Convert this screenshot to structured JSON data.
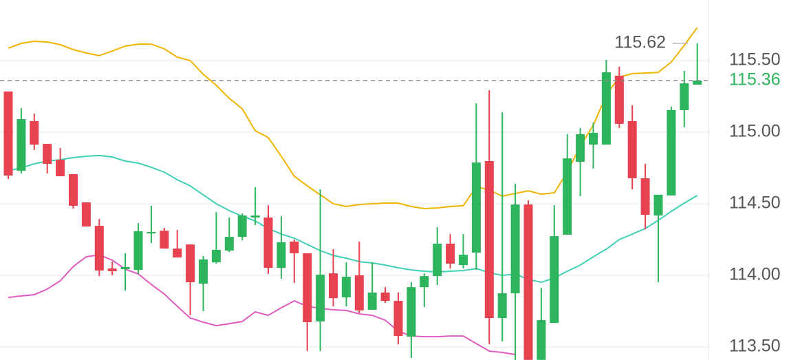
{
  "chart_data": {
    "type": "candlestick",
    "ylim": [
      113.409,
      115.923
    ],
    "yticks": [
      {
        "value": 115.5,
        "label": "115.50"
      },
      {
        "value": 115,
        "label": "115.00"
      },
      {
        "value": 114.5,
        "label": "114.50"
      },
      {
        "value": 114,
        "label": "114.00"
      },
      {
        "value": 113.5,
        "label": "113.50"
      }
    ],
    "grid": true,
    "up_color": "#2db55d",
    "down_color": "#e8414f",
    "open": [
      115.284,
      114.731,
      115.077,
      114.918,
      114.808,
      114.707,
      114.51,
      114.346,
      114.048,
      114.043,
      114.038,
      114.293,
      114.312,
      114.187,
      114.216,
      113.942,
      114.091,
      114.173,
      114.269,
      114.404,
      114.404,
      114.053,
      114.236,
      114.154,
      113.678,
      114.014,
      113.846,
      114.0,
      113.76,
      113.88,
      113.822,
      113.572,
      113.918,
      113.995,
      114.221,
      114.072,
      114.159,
      114.798,
      113.702,
      113.875,
      114.495,
      113.41,
      113.668,
      114.284,
      114.793,
      114.913,
      114.913,
      115.394,
      115.077,
      114.678,
      114.418,
      114.558,
      115.154,
      115.332
    ],
    "high": [
      115.284,
      115.168,
      115.13,
      114.918,
      114.889,
      114.707,
      114.51,
      114.394,
      114.096,
      114.154,
      114.365,
      114.486,
      114.332,
      114.317,
      114.216,
      114.135,
      114.442,
      114.404,
      114.433,
      114.615,
      114.49,
      114.413,
      114.25,
      114.154,
      114.601,
      114.183,
      114.091,
      114.236,
      114.091,
      113.918,
      113.88,
      113.952,
      114.014,
      114.337,
      114.288,
      114.288,
      115.202,
      115.293,
      115.139,
      114.639,
      114.524,
      113.913,
      114.49,
      114.986,
      115.029,
      115.067,
      115.505,
      115.457,
      115.188,
      114.779,
      114.563,
      115.178,
      115.428,
      115.62
    ],
    "low": [
      114.673,
      114.712,
      114.875,
      114.712,
      114.692,
      114.466,
      114.341,
      113.995,
      114.0,
      113.894,
      114.01,
      114.226,
      114.187,
      114.125,
      113.721,
      113.75,
      114.082,
      114.163,
      114.245,
      114.351,
      114.01,
      113.976,
      113.947,
      113.471,
      113.471,
      113.784,
      113.784,
      113.736,
      113.76,
      113.808,
      113.519,
      113.423,
      113.779,
      113.933,
      114.048,
      114.048,
      114.038,
      113.519,
      113.538,
      113.409,
      113.41,
      113.41,
      113.668,
      114.284,
      114.553,
      114.745,
      114.913,
      115.029,
      114.601,
      114.322,
      113.952,
      114.558,
      115.034,
      115.332
    ],
    "close": [
      114.697,
      115.091,
      114.913,
      114.779,
      114.692,
      114.486,
      114.341,
      114.034,
      114.029,
      114.058,
      114.308,
      114.303,
      114.187,
      114.125,
      113.952,
      114.111,
      114.178,
      114.269,
      114.418,
      114.418,
      114.053,
      114.231,
      114.154,
      113.673,
      114.005,
      113.841,
      113.99,
      113.755,
      113.88,
      113.822,
      113.577,
      113.918,
      113.995,
      114.221,
      114.082,
      114.144,
      114.788,
      113.702,
      113.875,
      114.495,
      113.41,
      113.688,
      114.274,
      114.817,
      114.986,
      114.995,
      115.418,
      115.058,
      114.678,
      114.423,
      114.563,
      115.154,
      115.341,
      115.36
    ],
    "bands": [
      {
        "color": "#f0b400",
        "values": [
          115.587,
          115.62,
          115.635,
          115.63,
          115.611,
          115.577,
          115.553,
          115.534,
          115.567,
          115.601,
          115.615,
          115.615,
          115.582,
          115.524,
          115.5,
          115.404,
          115.327,
          115.236,
          115.163,
          115.01,
          114.962,
          114.832,
          114.692,
          114.625,
          114.562,
          114.5,
          114.481,
          114.495,
          114.5,
          114.505,
          114.505,
          114.481,
          114.466,
          114.471,
          114.481,
          114.486,
          114.62,
          114.596,
          114.553,
          114.572,
          114.591,
          114.567,
          114.577,
          114.721,
          114.904,
          115.048,
          115.26,
          115.385,
          115.409,
          115.413,
          115.418,
          115.49,
          115.606,
          115.731
        ]
      },
      {
        "color": "#3fd0b5",
        "values": [
          114.731,
          114.75,
          114.779,
          114.798,
          114.808,
          114.822,
          114.832,
          114.837,
          114.827,
          114.798,
          114.784,
          114.755,
          114.721,
          114.668,
          114.625,
          114.562,
          114.5,
          114.452,
          114.413,
          114.38,
          114.327,
          114.288,
          114.26,
          114.216,
          114.173,
          114.139,
          114.12,
          114.096,
          114.087,
          114.072,
          114.053,
          114.038,
          114.029,
          114.024,
          114.029,
          114.034,
          114.048,
          114.019,
          114.0,
          114.01,
          113.971,
          113.952,
          113.981,
          114.029,
          114.072,
          114.13,
          114.183,
          114.25,
          114.288,
          114.327,
          114.385,
          114.447,
          114.505,
          114.558
        ]
      },
      {
        "color": "#e05bc0",
        "values": [
          113.846,
          113.856,
          113.865,
          113.904,
          113.962,
          114.062,
          114.13,
          114.144,
          114.106,
          114.043,
          114.01,
          113.937,
          113.87,
          113.784,
          113.702,
          113.673,
          113.649,
          113.663,
          113.678,
          113.745,
          113.721,
          113.774,
          113.822,
          113.784,
          113.769,
          113.76,
          113.755,
          113.731,
          113.721,
          113.687,
          113.611,
          113.577,
          113.572,
          113.572,
          113.577,
          113.577,
          113.524,
          113.471,
          113.462,
          113.447,
          null,
          null,
          null,
          null,
          null,
          null,
          null,
          null,
          null,
          null,
          null,
          null,
          null,
          null
        ]
      }
    ],
    "annotation": {
      "value": 115.62,
      "label": "115.62"
    },
    "last_price": {
      "value": 115.36,
      "label": "115.36",
      "color": "#2db55d"
    }
  }
}
